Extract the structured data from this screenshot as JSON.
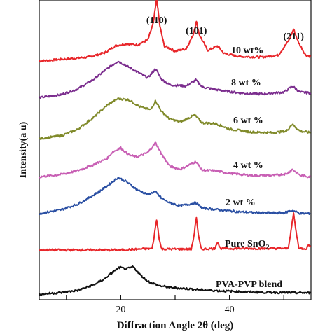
{
  "chart_data": {
    "type": "line",
    "title": "",
    "xlabel": "Diffraction Angle 2θ  (deg)",
    "ylabel": "Intensity(a u)",
    "xlim": [
      5,
      55
    ],
    "x_ticks": [
      {
        "value": 20,
        "label": "20"
      },
      {
        "value": 40,
        "label": "40"
      }
    ],
    "y_ticks": "none",
    "grid": false,
    "legend": "inline labels to the right of each curve",
    "peak_annotations": [
      {
        "text": "(110)",
        "x": 26.6
      },
      {
        "text": "(101)",
        "x": 33.9
      },
      {
        "text": "(211)",
        "x": 51.8
      }
    ],
    "series": [
      {
        "name": "10 wt%",
        "label": "10 wt%",
        "color": "#e8262a",
        "offset": 7.6,
        "points": [
          [
            5,
            0.05
          ],
          [
            10,
            0.12
          ],
          [
            14,
            0.18
          ],
          [
            17,
            0.32
          ],
          [
            19,
            0.55
          ],
          [
            21,
            0.62
          ],
          [
            23,
            0.58
          ],
          [
            25,
            0.75
          ],
          [
            26,
            1.3
          ],
          [
            26.6,
            2.1
          ],
          [
            27.2,
            1.2
          ],
          [
            28,
            0.55
          ],
          [
            30,
            0.38
          ],
          [
            32,
            0.45
          ],
          [
            33.3,
            0.9
          ],
          [
            33.9,
            1.35
          ],
          [
            34.5,
            0.9
          ],
          [
            36,
            0.4
          ],
          [
            37.8,
            0.55
          ],
          [
            39,
            0.3
          ],
          [
            42,
            0.2
          ],
          [
            46,
            0.18
          ],
          [
            49,
            0.25
          ],
          [
            51,
            0.75
          ],
          [
            51.8,
            1.1
          ],
          [
            52.6,
            0.7
          ],
          [
            54,
            0.25
          ],
          [
            55,
            0.2
          ]
        ]
      },
      {
        "name": "8 wt %",
        "label": "8 wt %",
        "color": "#7b2d8e",
        "offset": 6.45,
        "points": [
          [
            5,
            0.0
          ],
          [
            9,
            0.1
          ],
          [
            12,
            0.28
          ],
          [
            15,
            0.6
          ],
          [
            17.5,
            0.95
          ],
          [
            19.5,
            1.2
          ],
          [
            21,
            1.05
          ],
          [
            23,
            0.85
          ],
          [
            25,
            0.65
          ],
          [
            26.4,
            0.95
          ],
          [
            27.5,
            0.6
          ],
          [
            29,
            0.42
          ],
          [
            32,
            0.38
          ],
          [
            33.8,
            0.58
          ],
          [
            35,
            0.35
          ],
          [
            38,
            0.25
          ],
          [
            42,
            0.15
          ],
          [
            46,
            0.12
          ],
          [
            50,
            0.18
          ],
          [
            51.6,
            0.38
          ],
          [
            53,
            0.18
          ],
          [
            55,
            0.15
          ]
        ]
      },
      {
        "name": "6 wt %",
        "label": "6 wt %",
        "color": "#808a2a",
        "offset": 5.1,
        "points": [
          [
            5,
            0.0
          ],
          [
            9,
            0.1
          ],
          [
            12,
            0.3
          ],
          [
            15,
            0.7
          ],
          [
            17.5,
            1.1
          ],
          [
            19.5,
            1.32
          ],
          [
            21.5,
            1.28
          ],
          [
            23.5,
            1.05
          ],
          [
            25.5,
            0.95
          ],
          [
            26.4,
            1.25
          ],
          [
            27.5,
            0.9
          ],
          [
            29,
            0.65
          ],
          [
            31,
            0.55
          ],
          [
            33.6,
            0.78
          ],
          [
            35,
            0.52
          ],
          [
            37.5,
            0.5
          ],
          [
            40,
            0.32
          ],
          [
            44,
            0.22
          ],
          [
            48,
            0.2
          ],
          [
            50.5,
            0.25
          ],
          [
            51.5,
            0.48
          ],
          [
            53,
            0.25
          ],
          [
            55,
            0.2
          ]
        ]
      },
      {
        "name": "4 wt %",
        "label": "4 wt %",
        "color": "#c85fb4",
        "offset": 3.85,
        "points": [
          [
            5,
            0.0
          ],
          [
            9,
            0.08
          ],
          [
            12,
            0.2
          ],
          [
            15,
            0.4
          ],
          [
            17.5,
            0.6
          ],
          [
            18.5,
            0.82
          ],
          [
            20,
            0.95
          ],
          [
            21.5,
            0.72
          ],
          [
            23,
            0.65
          ],
          [
            25,
            0.8
          ],
          [
            26.4,
            1.12
          ],
          [
            27.5,
            0.75
          ],
          [
            29,
            0.35
          ],
          [
            31,
            0.25
          ],
          [
            33.8,
            0.5
          ],
          [
            35,
            0.22
          ],
          [
            37.5,
            0.2
          ],
          [
            40,
            0.12
          ],
          [
            44,
            0.05
          ],
          [
            48,
            0.05
          ],
          [
            50.5,
            0.1
          ],
          [
            51.6,
            0.25
          ],
          [
            53,
            0.05
          ],
          [
            55,
            0.0
          ]
        ]
      },
      {
        "name": "2 wt %",
        "label": "2 wt %",
        "color": "#2a4fa3",
        "offset": 2.65,
        "points": [
          [
            5,
            0.0
          ],
          [
            9,
            0.12
          ],
          [
            12,
            0.3
          ],
          [
            15,
            0.6
          ],
          [
            17.5,
            0.9
          ],
          [
            19.5,
            1.18
          ],
          [
            21,
            1.05
          ],
          [
            23,
            0.78
          ],
          [
            25,
            0.62
          ],
          [
            26.3,
            0.72
          ],
          [
            27.5,
            0.5
          ],
          [
            29,
            0.35
          ],
          [
            31,
            0.25
          ],
          [
            33.8,
            0.35
          ],
          [
            35,
            0.18
          ],
          [
            38,
            0.12
          ],
          [
            42,
            0.05
          ],
          [
            46,
            0.02
          ],
          [
            50,
            0.02
          ],
          [
            51.6,
            0.1
          ],
          [
            53,
            0.0
          ],
          [
            55,
            0.0
          ]
        ]
      },
      {
        "name": "Pure SnO2",
        "label": "Pure SnO",
        "label_sub": "2",
        "color": "#e8262a",
        "offset": 1.45,
        "points": [
          [
            5,
            0.0
          ],
          [
            20,
            0.0
          ],
          [
            25.8,
            0.05
          ],
          [
            26.1,
            0.4
          ],
          [
            26.6,
            1.0
          ],
          [
            27.1,
            0.35
          ],
          [
            27.5,
            0.03
          ],
          [
            33,
            0.03
          ],
          [
            33.5,
            0.5
          ],
          [
            33.9,
            1.1
          ],
          [
            34.3,
            0.45
          ],
          [
            34.8,
            0.03
          ],
          [
            37.3,
            0.05
          ],
          [
            37.8,
            0.28
          ],
          [
            38.3,
            0.05
          ],
          [
            50.8,
            0.05
          ],
          [
            51.3,
            0.6
          ],
          [
            51.8,
            1.2
          ],
          [
            52.3,
            0.55
          ],
          [
            52.8,
            0.05
          ],
          [
            54.2,
            0.05
          ],
          [
            54.6,
            0.2
          ],
          [
            55,
            0.05
          ]
        ]
      },
      {
        "name": "PVA-PVP blend",
        "label": "PVA-PVP blend",
        "color": "#111111",
        "offset": 0.0,
        "points": [
          [
            5,
            0.0
          ],
          [
            9,
            0.05
          ],
          [
            12,
            0.12
          ],
          [
            15,
            0.3
          ],
          [
            17,
            0.5
          ],
          [
            18.5,
            0.72
          ],
          [
            19.8,
            0.88
          ],
          [
            21,
            0.82
          ],
          [
            22.3,
            0.9
          ],
          [
            23.5,
            0.65
          ],
          [
            25,
            0.42
          ],
          [
            27,
            0.28
          ],
          [
            29,
            0.22
          ],
          [
            32,
            0.18
          ],
          [
            35,
            0.14
          ],
          [
            38,
            0.11
          ],
          [
            42,
            0.08
          ],
          [
            46,
            0.06
          ],
          [
            50,
            0.05
          ],
          [
            55,
            0.04
          ]
        ]
      }
    ]
  }
}
